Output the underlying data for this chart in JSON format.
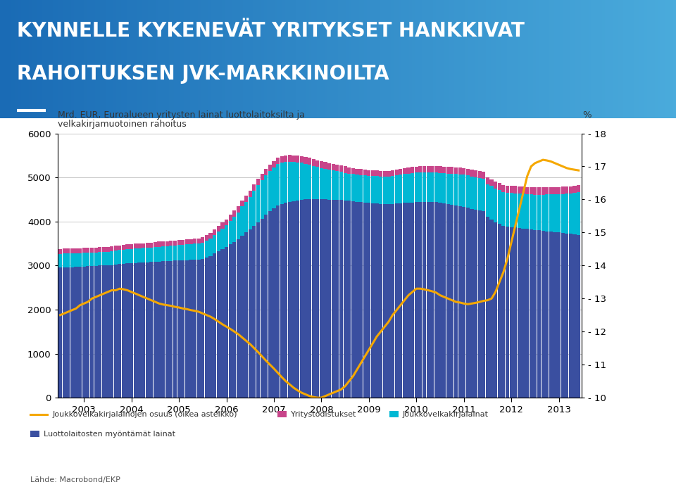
{
  "title_line1": "KYNNELLE KYKENEVÄT YRITYKSET HANKKIVAT",
  "title_line2": "RAHOITUKSEN JVK-MARKKINOILTA",
  "source": "Lähde: Macrobond/EKP",
  "legend_items": [
    "Joukkovelkakirjalainojen osuus (oikea asteikko)",
    "Yritystodistukset",
    "Joukkovelkakirjalainat",
    "Luottolaitosten myöntämät lainat"
  ],
  "colors": {
    "bank_loans": "#3A4FA0",
    "bonds": "#00B8D4",
    "commercial_paper": "#C8458A",
    "line": "#F5A800",
    "title_bg_left": "#1A6BB5",
    "title_bg_right": "#4AABDC",
    "title_text": "#FFFFFF",
    "background": "#FFFFFF",
    "gridline": "#C8C8C8"
  },
  "ylim_left": [
    0,
    6000
  ],
  "ylim_right": [
    10,
    18
  ],
  "yticks_left": [
    0,
    1000,
    2000,
    3000,
    4000,
    5000,
    6000
  ],
  "yticks_right": [
    10,
    11,
    12,
    13,
    14,
    15,
    16,
    17,
    18
  ],
  "bank_loans": [
    2950,
    2960,
    2960,
    2965,
    2970,
    2975,
    2980,
    2985,
    2990,
    2995,
    3000,
    3000,
    3000,
    3010,
    3020,
    3030,
    3040,
    3050,
    3055,
    3060,
    3065,
    3070,
    3075,
    3080,
    3080,
    3090,
    3095,
    3100,
    3105,
    3110,
    3115,
    3120,
    3125,
    3130,
    3135,
    3140,
    3150,
    3180,
    3220,
    3270,
    3320,
    3370,
    3420,
    3480,
    3540,
    3600,
    3680,
    3750,
    3820,
    3900,
    3980,
    4060,
    4150,
    4230,
    4300,
    4360,
    4400,
    4430,
    4450,
    4460,
    4470,
    4490,
    4500,
    4510,
    4510,
    4510,
    4505,
    4500,
    4495,
    4490,
    4490,
    4490,
    4480,
    4475,
    4465,
    4450,
    4440,
    4430,
    4420,
    4415,
    4410,
    4400,
    4395,
    4395,
    4400,
    4405,
    4415,
    4425,
    4430,
    4435,
    4440,
    4440,
    4445,
    4445,
    4440,
    4440,
    4420,
    4405,
    4390,
    4375,
    4360,
    4345,
    4330,
    4310,
    4290,
    4270,
    4250,
    4230,
    4100,
    4050,
    3980,
    3950,
    3900,
    3880,
    3870,
    3860,
    3850,
    3840,
    3830,
    3820,
    3810,
    3800,
    3790,
    3780,
    3770,
    3760,
    3750,
    3740,
    3730,
    3720,
    3710,
    3700
  ],
  "bonds": [
    310,
    315,
    312,
    312,
    310,
    308,
    307,
    306,
    305,
    305,
    305,
    305,
    310,
    315,
    318,
    320,
    322,
    324,
    325,
    325,
    326,
    327,
    328,
    330,
    335,
    338,
    340,
    342,
    345,
    347,
    348,
    350,
    352,
    355,
    358,
    360,
    365,
    380,
    400,
    420,
    445,
    470,
    490,
    530,
    570,
    610,
    660,
    700,
    740,
    800,
    850,
    880,
    900,
    920,
    930,
    940,
    930,
    920,
    910,
    890,
    870,
    840,
    810,
    780,
    750,
    730,
    710,
    695,
    680,
    665,
    655,
    640,
    625,
    615,
    610,
    610,
    615,
    615,
    618,
    618,
    620,
    620,
    622,
    625,
    630,
    638,
    645,
    652,
    658,
    663,
    667,
    670,
    672,
    675,
    677,
    678,
    685,
    692,
    700,
    710,
    718,
    725,
    730,
    733,
    736,
    738,
    740,
    742,
    748,
    755,
    762,
    768,
    773,
    778,
    780,
    782,
    785,
    787,
    790,
    792,
    800,
    810,
    820,
    832,
    845,
    858,
    870,
    885,
    900,
    920,
    940,
    960
  ],
  "commercial_paper": [
    120,
    118,
    116,
    115,
    113,
    112,
    111,
    110,
    110,
    110,
    110,
    110,
    108,
    107,
    107,
    107,
    107,
    108,
    108,
    108,
    109,
    110,
    111,
    112,
    112,
    113,
    113,
    114,
    115,
    115,
    116,
    117,
    118,
    118,
    119,
    120,
    122,
    125,
    128,
    130,
    132,
    134,
    136,
    138,
    139,
    140,
    141,
    142,
    143,
    144,
    145,
    146,
    146,
    147,
    147,
    147,
    148,
    150,
    152,
    153,
    153,
    154,
    155,
    155,
    154,
    153,
    152,
    151,
    150,
    149,
    148,
    147,
    145,
    143,
    140,
    137,
    134,
    131,
    130,
    129,
    129,
    130,
    130,
    131,
    132,
    134,
    136,
    138,
    140,
    141,
    142,
    143,
    144,
    145,
    146,
    147,
    148,
    149,
    150,
    151,
    151,
    152,
    152,
    153,
    153,
    154,
    154,
    155,
    156,
    157,
    158,
    159,
    160,
    160,
    161,
    161,
    161,
    162,
    162,
    162,
    163,
    163,
    163,
    163,
    163,
    162,
    162,
    162,
    162,
    162,
    162,
    162
  ],
  "pct_line": [
    12.5,
    12.55,
    12.6,
    12.65,
    12.7,
    12.8,
    12.85,
    12.9,
    13.0,
    13.05,
    13.1,
    13.15,
    13.2,
    13.25,
    13.25,
    13.3,
    13.28,
    13.25,
    13.2,
    13.15,
    13.1,
    13.05,
    13.0,
    12.95,
    12.9,
    12.85,
    12.82,
    12.8,
    12.78,
    12.75,
    12.73,
    12.7,
    12.68,
    12.65,
    12.63,
    12.6,
    12.55,
    12.5,
    12.45,
    12.38,
    12.3,
    12.22,
    12.15,
    12.08,
    12.0,
    11.92,
    11.82,
    11.72,
    11.62,
    11.5,
    11.38,
    11.25,
    11.12,
    11.0,
    10.88,
    10.75,
    10.62,
    10.5,
    10.4,
    10.3,
    10.22,
    10.15,
    10.1,
    10.05,
    10.02,
    10.0,
    10.0,
    10.05,
    10.1,
    10.15,
    10.2,
    10.25,
    10.35,
    10.5,
    10.65,
    10.85,
    11.05,
    11.25,
    11.45,
    11.65,
    11.85,
    12.0,
    12.15,
    12.3,
    12.5,
    12.65,
    12.8,
    12.95,
    13.1,
    13.2,
    13.3,
    13.3,
    13.28,
    13.25,
    13.22,
    13.18,
    13.1,
    13.05,
    13.0,
    12.95,
    12.9,
    12.88,
    12.85,
    12.83,
    12.85,
    12.87,
    12.9,
    12.93,
    12.95,
    13.0,
    13.2,
    13.5,
    13.8,
    14.2,
    14.7,
    15.2,
    15.7,
    16.2,
    16.7,
    17.0,
    17.1,
    17.15,
    17.2,
    17.18,
    17.15,
    17.1,
    17.05,
    17.0,
    16.95,
    16.92,
    16.9,
    16.88
  ],
  "n_months": 132,
  "year_tick_offsets": [
    6,
    18,
    30,
    42,
    54,
    66,
    78,
    90,
    102,
    114,
    126
  ],
  "xtick_labels": [
    "2003",
    "2004",
    "2005",
    "2006",
    "2007",
    "2008",
    "2009",
    "2010",
    "2011",
    "2012",
    "2013"
  ]
}
